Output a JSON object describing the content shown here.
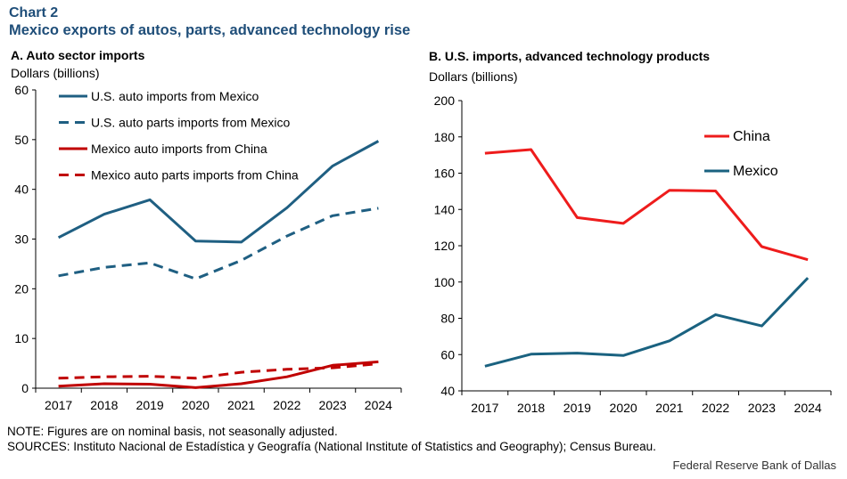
{
  "header": {
    "chart_label": "Chart 2",
    "title": "Mexico exports of autos, parts, advanced technology rise"
  },
  "footer": {
    "note": "NOTE: Figures are on nominal basis, not seasonally adjusted.",
    "sources": "SOURCES: Instituto Nacional de Estadística y Geografía (National Institute of Statistics and Geography); Census Bureau.",
    "credit": "Federal Reserve Bank of Dallas"
  },
  "colors": {
    "title": "#1f4e79",
    "blue": "#1f5f82",
    "red": "#c00000",
    "bright_red": "#ee1c1c",
    "teal": "#1a6280"
  },
  "chart_data": [
    {
      "type": "line",
      "panel_title": "A. Auto sector imports",
      "ylabel": "Dollars (billions)",
      "xlabel": "",
      "categories": [
        "2017",
        "2018",
        "2019",
        "2020",
        "2021",
        "2022",
        "2023",
        "2024"
      ],
      "ylim": [
        0,
        60
      ],
      "yticks": [
        "0",
        "10",
        "20",
        "30",
        "40",
        "50",
        "60"
      ],
      "legend_position": "top-left",
      "series": [
        {
          "name": "U.S. auto imports from Mexico",
          "color": "#1f5f82",
          "dash": false,
          "values": [
            30.3,
            35.0,
            37.9,
            29.6,
            29.4,
            36.3,
            44.7,
            49.7
          ]
        },
        {
          "name": "U.S. auto parts imports from Mexico",
          "color": "#1f5f82",
          "dash": true,
          "values": [
            22.6,
            24.3,
            25.2,
            22.0,
            25.7,
            30.6,
            34.7,
            36.2
          ]
        },
        {
          "name": "Mexico auto imports from China",
          "color": "#c00000",
          "dash": false,
          "values": [
            0.4,
            0.9,
            0.8,
            0.1,
            0.9,
            2.3,
            4.6,
            5.3
          ]
        },
        {
          "name": "Mexico auto parts imports from China",
          "color": "#c00000",
          "dash": true,
          "values": [
            2.0,
            2.3,
            2.4,
            2.0,
            3.2,
            3.8,
            4.1,
            4.9
          ]
        }
      ]
    },
    {
      "type": "line",
      "panel_title": "B. U.S. imports, advanced technology products",
      "ylabel": "Dollars (billions)",
      "xlabel": "",
      "categories": [
        "2017",
        "2018",
        "2019",
        "2020",
        "2021",
        "2022",
        "2023",
        "2024"
      ],
      "ylim": [
        40,
        200
      ],
      "yticks": [
        "40",
        "60",
        "80",
        "100",
        "120",
        "140",
        "160",
        "180",
        "200"
      ],
      "legend_position": "top-right",
      "series": [
        {
          "name": "China",
          "color": "#ee1c1c",
          "dash": false,
          "values": [
            171,
            173,
            135.5,
            132.3,
            150.6,
            150.2,
            119.5,
            112.3
          ]
        },
        {
          "name": "Mexico",
          "color": "#1a6280",
          "dash": false,
          "values": [
            53.6,
            60.2,
            60.8,
            59.5,
            67.6,
            82.0,
            75.8,
            102.3
          ]
        }
      ]
    }
  ]
}
